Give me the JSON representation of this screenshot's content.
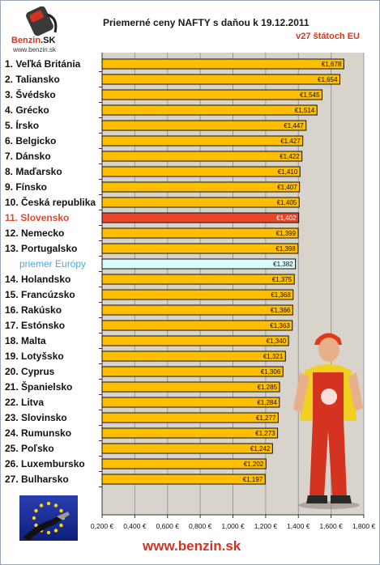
{
  "logo": {
    "brand": "Benzin",
    "brand_suffix": ".SK",
    "url": "www.benzin.sk"
  },
  "footer_url": "www.benzin.sk",
  "colors": {
    "bar": "#ffbf00",
    "bar_highlight": "#e8462a",
    "bar_average": "#d9fbfb",
    "plot_bg": "#d8d4cc",
    "grid": "#9a9a9a"
  },
  "chart_data": {
    "type": "bar",
    "orientation": "horizontal",
    "title": "Priemerné ceny NAFTY s daňou k 19.12.2011",
    "subtitle": "v27 štátoch EU",
    "currency_prefix": "€",
    "highlight_index": 10,
    "average_index": 13,
    "categories": [
      "1. Veľká Británia",
      "2. Taliansko",
      "3. Švédsko",
      "4. Grécko",
      "5. Írsko",
      "6. Belgicko",
      "7. Dánsko",
      "8. Maďarsko",
      "9. Fínsko",
      "10. Česká republika",
      "11. Slovensko",
      "12. Nemecko",
      "13. Portugalsko",
      "priemer Európy",
      "14. Holandsko",
      "15. Francúzsko",
      "16. Rakúsko",
      "17. Estónsko",
      "18. Malta",
      "19. Lotyšsko",
      "20. Cyprus",
      "21. Španielsko",
      "22. Litva",
      "23. Slovinsko",
      "24. Rumunsko",
      "25. Poľsko",
      "26. Luxembursko",
      "27. Bulharsko"
    ],
    "values": [
      1.678,
      1.654,
      1.545,
      1.514,
      1.447,
      1.427,
      1.422,
      1.41,
      1.407,
      1.405,
      1.402,
      1.399,
      1.398,
      1.382,
      1.375,
      1.368,
      1.366,
      1.363,
      1.34,
      1.321,
      1.306,
      1.285,
      1.284,
      1.277,
      1.273,
      1.242,
      1.202,
      1.197
    ],
    "value_labels": [
      "€1,678",
      "€1,654",
      "€1,545",
      "€1,514",
      "€1,447",
      "€1,427",
      "€1,422",
      "€1,410",
      "€1,407",
      "€1,405",
      "€1,402",
      "€1,399",
      "€1,398",
      "€1,382",
      "€1,375",
      "€1,368",
      "€1,366",
      "€1,363",
      "€1,340",
      "€1,321",
      "€1,306",
      "€1,285",
      "€1,284",
      "€1,277",
      "€1,273",
      "€1,242",
      "€1,202",
      "€1,197"
    ],
    "xlim": [
      0.2,
      1.8
    ],
    "xticks": [
      0.2,
      0.4,
      0.6,
      0.8,
      1.0,
      1.2,
      1.4,
      1.6,
      1.8
    ],
    "xtick_labels": [
      "0,200 €",
      "0,400 €",
      "0,600 €",
      "0,800 €",
      "1,000 €",
      "1,200 €",
      "1,400 €",
      "1,600 €",
      "1,800 €"
    ],
    "grid": true,
    "legend": "none"
  }
}
